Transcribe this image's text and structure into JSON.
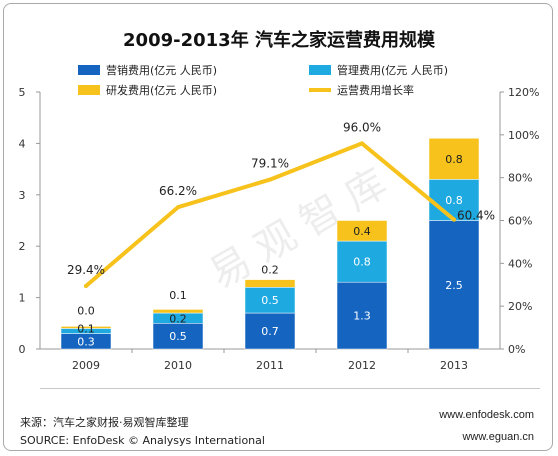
{
  "chart_data": {
    "type": "bar",
    "title": "2009-2013年 汽车之家运营费用规模",
    "categories": [
      "2009",
      "2010",
      "2011",
      "2012",
      "2013"
    ],
    "series": [
      {
        "name": "营销费用(亿元 人民币)",
        "kind": "stacked-bar",
        "axis": "left",
        "color": "#1565c0",
        "values": [
          0.3,
          0.5,
          0.7,
          1.3,
          2.5
        ],
        "labels": [
          "0.3",
          "0.5",
          "0.7",
          "1.3",
          "2.5"
        ]
      },
      {
        "name": "管理费用(亿元 人民币)",
        "kind": "stacked-bar",
        "axis": "left",
        "color": "#1fa9e1",
        "values": [
          0.1,
          0.2,
          0.5,
          0.8,
          0.8
        ],
        "labels": [
          "0.1",
          "0.2",
          "0.5",
          "0.8",
          "0.8"
        ]
      },
      {
        "name": "研发费用(亿元 人民币)",
        "kind": "stacked-bar",
        "axis": "left",
        "color": "#f6c21b",
        "values": [
          0.04,
          0.07,
          0.15,
          0.4,
          0.8
        ],
        "labels": [
          "0.0",
          "0.1",
          "0.2",
          "0.4",
          "0.8"
        ]
      },
      {
        "name": "运营费用增长率",
        "kind": "line",
        "axis": "right",
        "color": "#f6c21b",
        "values": [
          29.4,
          66.2,
          79.1,
          96.0,
          60.4
        ],
        "labels": [
          "29.4%",
          "66.2%",
          "79.1%",
          "96.0%",
          "60.4%"
        ]
      }
    ],
    "ylim": [
      0,
      5
    ],
    "yticks": [
      "0",
      "1",
      "2",
      "3",
      "4",
      "5"
    ],
    "y2lim": [
      0,
      120
    ],
    "y2ticks": [
      "0%",
      "20%",
      "40%",
      "60%",
      "80%",
      "100%",
      "120%"
    ],
    "legend": "top",
    "grid": false
  },
  "watermark": "易观智库",
  "footer": {
    "source_cn": "来源：汽车之家财报·易观智库整理",
    "source_en": "SOURCE: EnfoDesk © Analysys International",
    "url1": "www.enfodesk.com",
    "url2": "www.eguan.cn"
  }
}
